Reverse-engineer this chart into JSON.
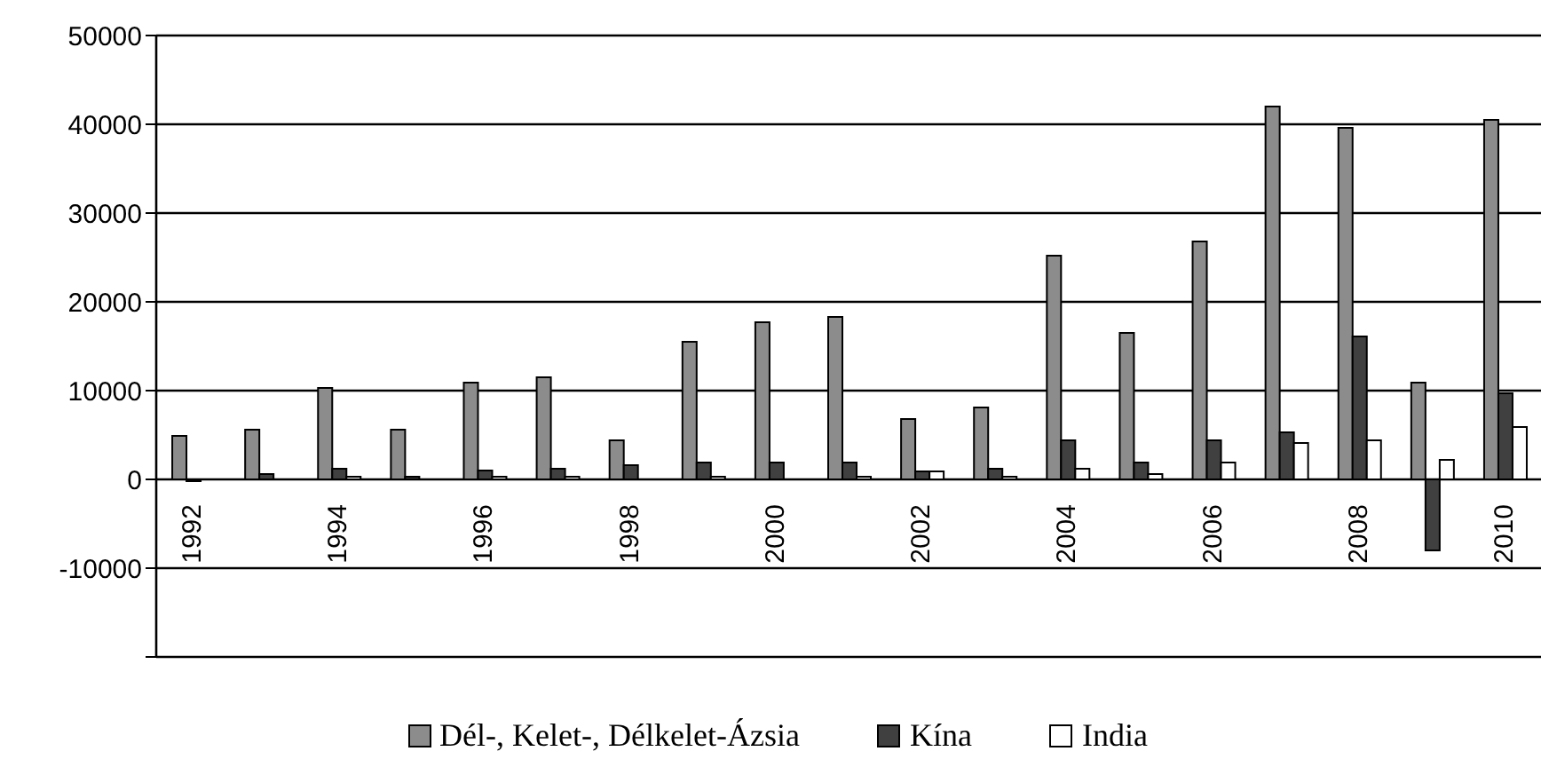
{
  "chart_data": {
    "type": "bar",
    "categories": [
      "1992",
      null,
      "1994",
      null,
      "1996",
      null,
      "1998",
      null,
      "2000",
      null,
      "2002",
      null,
      "2004",
      null,
      "2006",
      null,
      "2008",
      null,
      "2010"
    ],
    "series": [
      {
        "name": "Dél-, Kelet-, Délkelet-Ázsia",
        "color": "#8c8c8c",
        "values": [
          4900,
          5600,
          10300,
          5600,
          10900,
          11500,
          4400,
          15500,
          17700,
          18300,
          6800,
          8100,
          25200,
          16500,
          26800,
          42000,
          39600,
          10900,
          40500
        ]
      },
      {
        "name": "Kína",
        "color": "#404040",
        "values": [
          -200,
          600,
          1200,
          300,
          1000,
          1200,
          1600,
          1900,
          1900,
          1900,
          900,
          1200,
          4400,
          1900,
          4400,
          5300,
          16100,
          -8000,
          9700
        ]
      },
      {
        "name": "India",
        "color": "#ffffff",
        "values": [
          null,
          null,
          300,
          null,
          300,
          300,
          null,
          300,
          null,
          300,
          900,
          300,
          1200,
          600,
          1900,
          4100,
          4400,
          2200,
          5900
        ]
      }
    ],
    "ylim": [
      -20000,
      50000
    ],
    "yticks": [
      {
        "value": -20000,
        "label": null
      },
      -10000,
      0,
      10000,
      20000,
      30000,
      40000,
      50000
    ],
    "grid": "y",
    "legend": "bottom"
  }
}
